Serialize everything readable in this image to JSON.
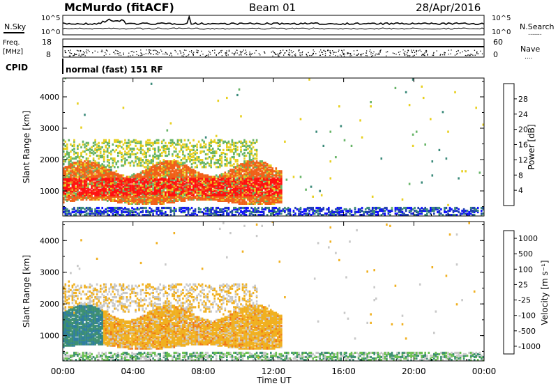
{
  "header": {
    "station": "McMurdo (fitACF)",
    "beam": "Beam 01",
    "date": "28/Apr/2016"
  },
  "noise_panel": {
    "left_label": "N.Sky",
    "right_label": "N.Search",
    "right_dots": ".......",
    "ticks_left": [
      "10^5",
      "10^0"
    ],
    "ticks_right": [
      "10^5",
      "10^0"
    ]
  },
  "freq_panel": {
    "left_label_1": "Freq.",
    "left_label_2": "[MHz]",
    "right_label": "Nave",
    "right_dots": "....",
    "ticks_left": [
      "18",
      "8"
    ],
    "ticks_right": [
      "60",
      "0"
    ]
  },
  "cpid_panel": {
    "left_label": "CPID",
    "mode_text": "normal (fast) 151 RF"
  },
  "x_axis": {
    "label": "Time UT",
    "ticks": [
      "00:00",
      "04:00",
      "08:00",
      "12:00",
      "16:00",
      "20:00",
      "00:00"
    ]
  },
  "chart_data": [
    {
      "type": "heatmap",
      "id": "power",
      "ylabel": "Slant Range [km]",
      "yticks": [
        "1000",
        "2000",
        "3000",
        "4000"
      ],
      "ylim": [
        200,
        4600
      ],
      "xlim_hours": [
        0,
        24
      ],
      "colorbar_label": "Power [dB]",
      "colorbar_ticks": [
        "4",
        "8",
        "12",
        "16",
        "20",
        "24",
        "28"
      ],
      "colors": [
        "#1010ff",
        "#2040b0",
        "#3b8a7a",
        "#66b466",
        "#e8d020",
        "#f39a1a",
        "#f06018",
        "#ff1010"
      ]
    },
    {
      "type": "heatmap",
      "id": "velocity",
      "ylabel": "Slant Range [km]",
      "yticks": [
        "1000",
        "2000",
        "3000",
        "4000"
      ],
      "ylim": [
        200,
        4600
      ],
      "xlim_hours": [
        0,
        24
      ],
      "colorbar_label": "Velocity [m s⁻¹]",
      "colorbar_ticks": [
        "1000",
        "500",
        "100",
        "25",
        "-25",
        "-100",
        "-500",
        "-1000"
      ],
      "colors": [
        "#2040c0",
        "#2e7da0",
        "#3d8f70",
        "#6ac050",
        "#c8c8c8",
        "#f0b020",
        "#f07818",
        "#ff2010"
      ]
    }
  ]
}
